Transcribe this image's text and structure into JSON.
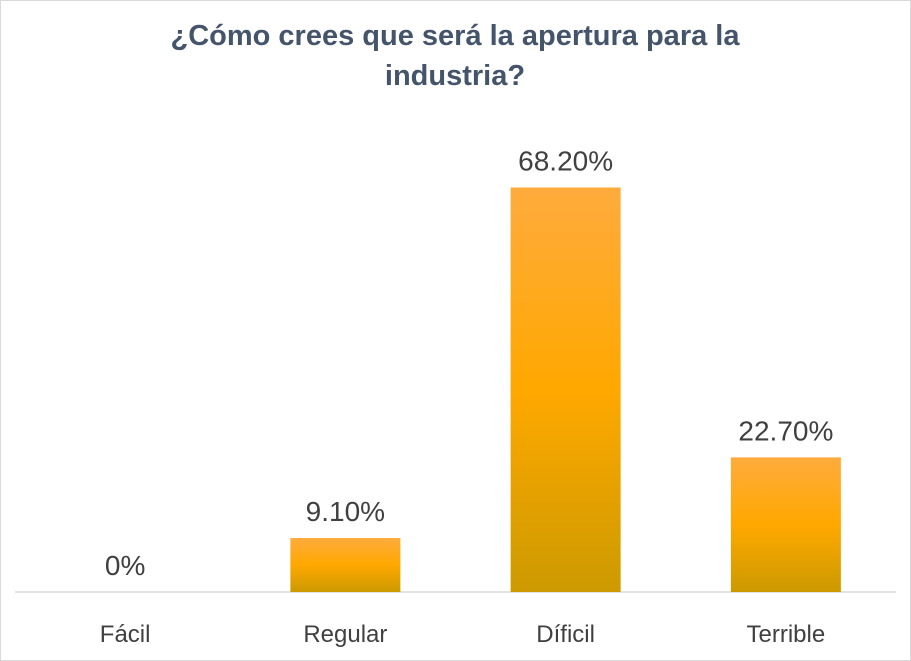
{
  "chart_data": {
    "type": "bar",
    "title": "¿Cómo crees que será la apertura para la industria?",
    "xlabel": "",
    "ylabel": "",
    "categories": [
      "Fácil",
      "Regular",
      "Díficil",
      "Terrible"
    ],
    "values": [
      0,
      9.1,
      68.2,
      22.7
    ],
    "value_labels": [
      "0%",
      "9.10%",
      "68.20%",
      "22.70%"
    ],
    "ylim": [
      0,
      70
    ],
    "grid": false,
    "legend": "none",
    "colors": {
      "bar_top": "#ffab3d",
      "bar_mid": "#ffa800",
      "bar_bottom": "#cc9a00",
      "axis": "#d9d9d9",
      "text": "#404040",
      "title": "#44546a"
    }
  }
}
